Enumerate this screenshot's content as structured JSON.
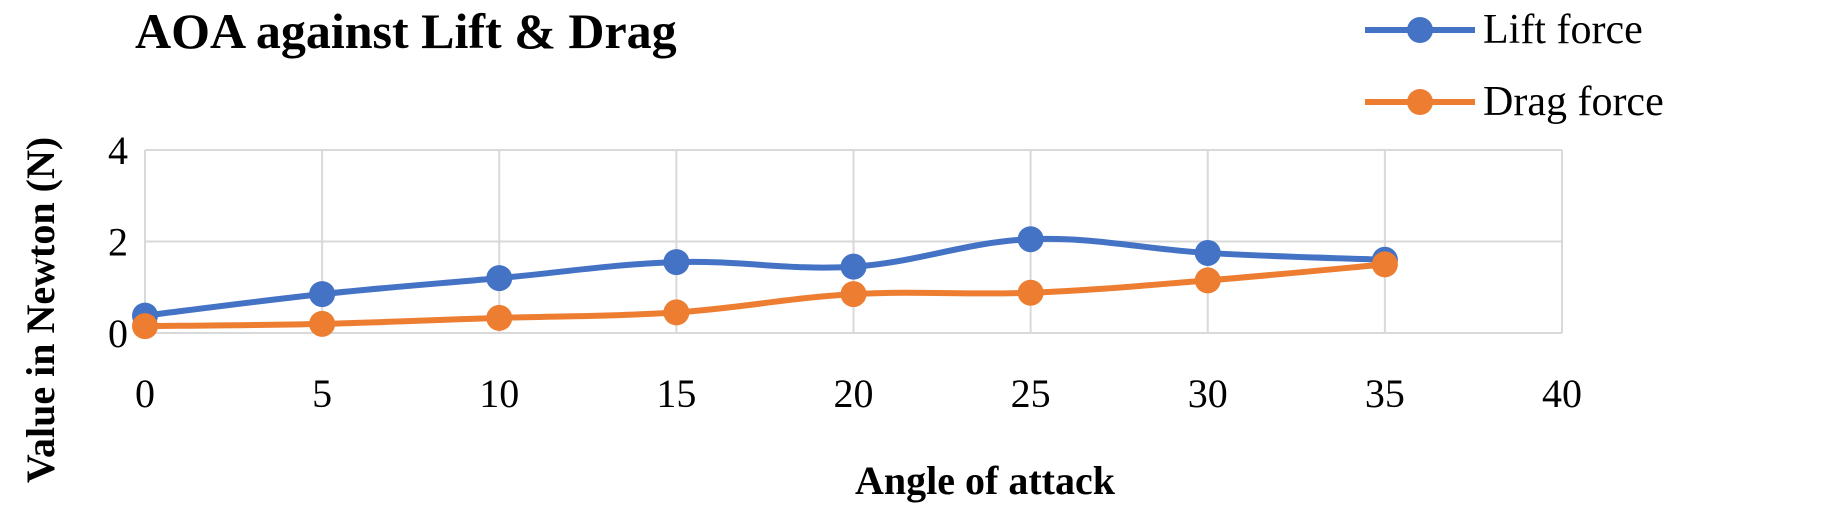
{
  "chart_data": {
    "type": "line",
    "title": "AOA against Lift & Drag",
    "xlabel": "Angle of attack",
    "ylabel": "Value in Newton (N)",
    "xlim": [
      0,
      40
    ],
    "ylim": [
      0,
      4
    ],
    "x_ticks": [
      0,
      5,
      10,
      15,
      20,
      25,
      30,
      35,
      40
    ],
    "y_ticks": [
      0,
      2,
      4
    ],
    "grid": true,
    "legend_position": "top-right",
    "x": [
      0,
      5,
      10,
      15,
      20,
      25,
      30,
      35
    ],
    "series": [
      {
        "name": "Lift force",
        "color": "#4472c4",
        "values": [
          0.38,
          0.85,
          1.2,
          1.55,
          1.45,
          2.05,
          1.75,
          1.6
        ]
      },
      {
        "name": "Drag force",
        "color": "#ed7d31",
        "values": [
          0.15,
          0.2,
          0.33,
          0.45,
          0.85,
          0.88,
          1.15,
          1.5
        ]
      }
    ]
  }
}
